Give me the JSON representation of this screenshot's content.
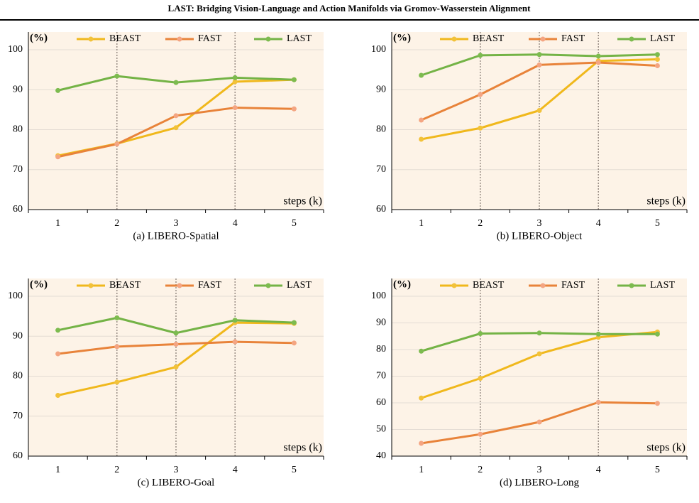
{
  "header": {
    "title": "LAST: Bridging Vision-Language and Action Manifolds via Gromov-Wasserstein Alignment"
  },
  "chart_data": [
    {
      "type": "line",
      "title": "(a) LIBERO-Spatial",
      "y_label": "(%)",
      "x_label": "steps (k)",
      "x": [
        1,
        2,
        3,
        4,
        5
      ],
      "xlim": [
        0.5,
        5.5
      ],
      "xticks": [
        1,
        2,
        3,
        4,
        5
      ],
      "ylim": [
        60,
        100
      ],
      "yticks": [
        60,
        70,
        80,
        90,
        100
      ],
      "grid": true,
      "vlines": [
        2,
        4
      ],
      "series": [
        {
          "name": "BEAST",
          "color": "#f0b81c",
          "marker_color": "#f2c23a",
          "values": [
            73.5,
            76.5,
            80.5,
            92,
            92.5
          ]
        },
        {
          "name": "FAST",
          "color": "#e8833a",
          "marker_color": "#f4a582",
          "values": [
            73.2,
            76.4,
            83.5,
            85.5,
            85.2
          ]
        },
        {
          "name": "LAST",
          "color": "#74b346",
          "marker_color": "#7dbb4f",
          "values": [
            89.8,
            93.4,
            91.8,
            93,
            92.5
          ]
        }
      ]
    },
    {
      "type": "line",
      "title": "(b) LIBERO-Object",
      "y_label": "(%)",
      "x_label": "steps (k)",
      "x": [
        1,
        2,
        3,
        4,
        5
      ],
      "xlim": [
        0.5,
        5.5
      ],
      "xticks": [
        1,
        2,
        3,
        4,
        5
      ],
      "ylim": [
        60,
        100
      ],
      "yticks": [
        60,
        70,
        80,
        90,
        100
      ],
      "grid": true,
      "vlines": [
        2,
        3,
        4
      ],
      "series": [
        {
          "name": "BEAST",
          "color": "#f0b81c",
          "marker_color": "#f2c23a",
          "values": [
            77.6,
            80.4,
            84.8,
            97.2,
            97.6
          ]
        },
        {
          "name": "FAST",
          "color": "#e8833a",
          "marker_color": "#f4a582",
          "values": [
            82.4,
            88.8,
            96.2,
            96.8,
            96
          ]
        },
        {
          "name": "LAST",
          "color": "#74b346",
          "marker_color": "#7dbb4f",
          "values": [
            93.6,
            98.6,
            98.8,
            98.4,
            98.8
          ]
        }
      ]
    },
    {
      "type": "line",
      "title": "(c) LIBERO-Goal",
      "y_label": "(%)",
      "x_label": "steps (k)",
      "x": [
        1,
        2,
        3,
        4,
        5
      ],
      "xlim": [
        0.5,
        5.5
      ],
      "xticks": [
        1,
        2,
        3,
        4,
        5
      ],
      "ylim": [
        60,
        100
      ],
      "yticks": [
        60,
        70,
        80,
        90,
        100
      ],
      "grid": true,
      "vlines": [
        2,
        3,
        4
      ],
      "series": [
        {
          "name": "BEAST",
          "color": "#f0b81c",
          "marker_color": "#f2c23a",
          "values": [
            75.2,
            78.5,
            82.3,
            93.4,
            93.2
          ]
        },
        {
          "name": "FAST",
          "color": "#e8833a",
          "marker_color": "#f4a582",
          "values": [
            85.6,
            87.4,
            88,
            88.6,
            88.3
          ]
        },
        {
          "name": "LAST",
          "color": "#74b346",
          "marker_color": "#7dbb4f",
          "values": [
            91.5,
            94.6,
            90.8,
            94,
            93.4
          ]
        }
      ]
    },
    {
      "type": "line",
      "title": "(d) LIBERO-Long",
      "y_label": "(%)",
      "x_label": "steps (k)",
      "x": [
        1,
        2,
        3,
        4,
        5
      ],
      "xlim": [
        0.5,
        5.5
      ],
      "xticks": [
        1,
        2,
        3,
        4,
        5
      ],
      "ylim": [
        40,
        100
      ],
      "yticks": [
        40,
        50,
        60,
        70,
        80,
        90,
        100
      ],
      "grid": true,
      "vlines": [
        2,
        4
      ],
      "series": [
        {
          "name": "BEAST",
          "color": "#f0b81c",
          "marker_color": "#f2c23a",
          "values": [
            61.8,
            69.2,
            78.4,
            84.6,
            86.6
          ]
        },
        {
          "name": "FAST",
          "color": "#e8833a",
          "marker_color": "#f4a582",
          "values": [
            44.8,
            48.2,
            52.8,
            60.2,
            59.8
          ]
        },
        {
          "name": "LAST",
          "color": "#74b346",
          "marker_color": "#7dbb4f",
          "values": [
            79.4,
            86,
            86.2,
            85.8,
            85.8
          ]
        }
      ]
    }
  ]
}
